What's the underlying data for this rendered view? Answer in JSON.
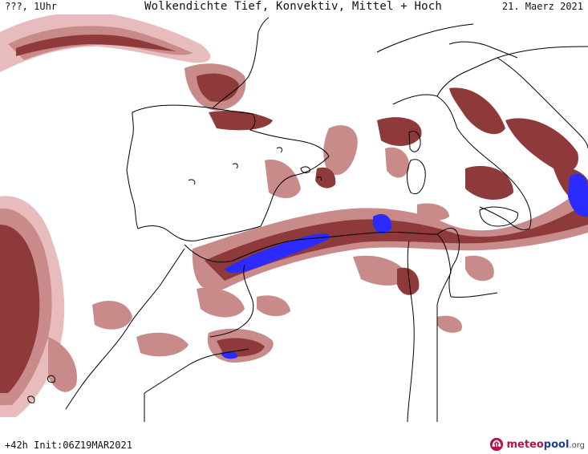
{
  "header": {
    "left_label": "???, 1Uhr",
    "title": "Wolkendichte  Tief, Konvektiv, Mittel + Hoch",
    "date": "21. Maerz 2021"
  },
  "footer": {
    "run_info": "+42h Init:06Z19MAR2021"
  },
  "logo": {
    "part1": "meteo",
    "part2": "pool",
    "part3": ".org"
  },
  "colors": {
    "cloud_light": "#e8bcbc",
    "cloud_mid": "#c98a8a",
    "cloud_dark": "#8f3a3a",
    "cloud_max": "#2b2bff",
    "coastline": "#000000",
    "background": "#ffffff"
  }
}
